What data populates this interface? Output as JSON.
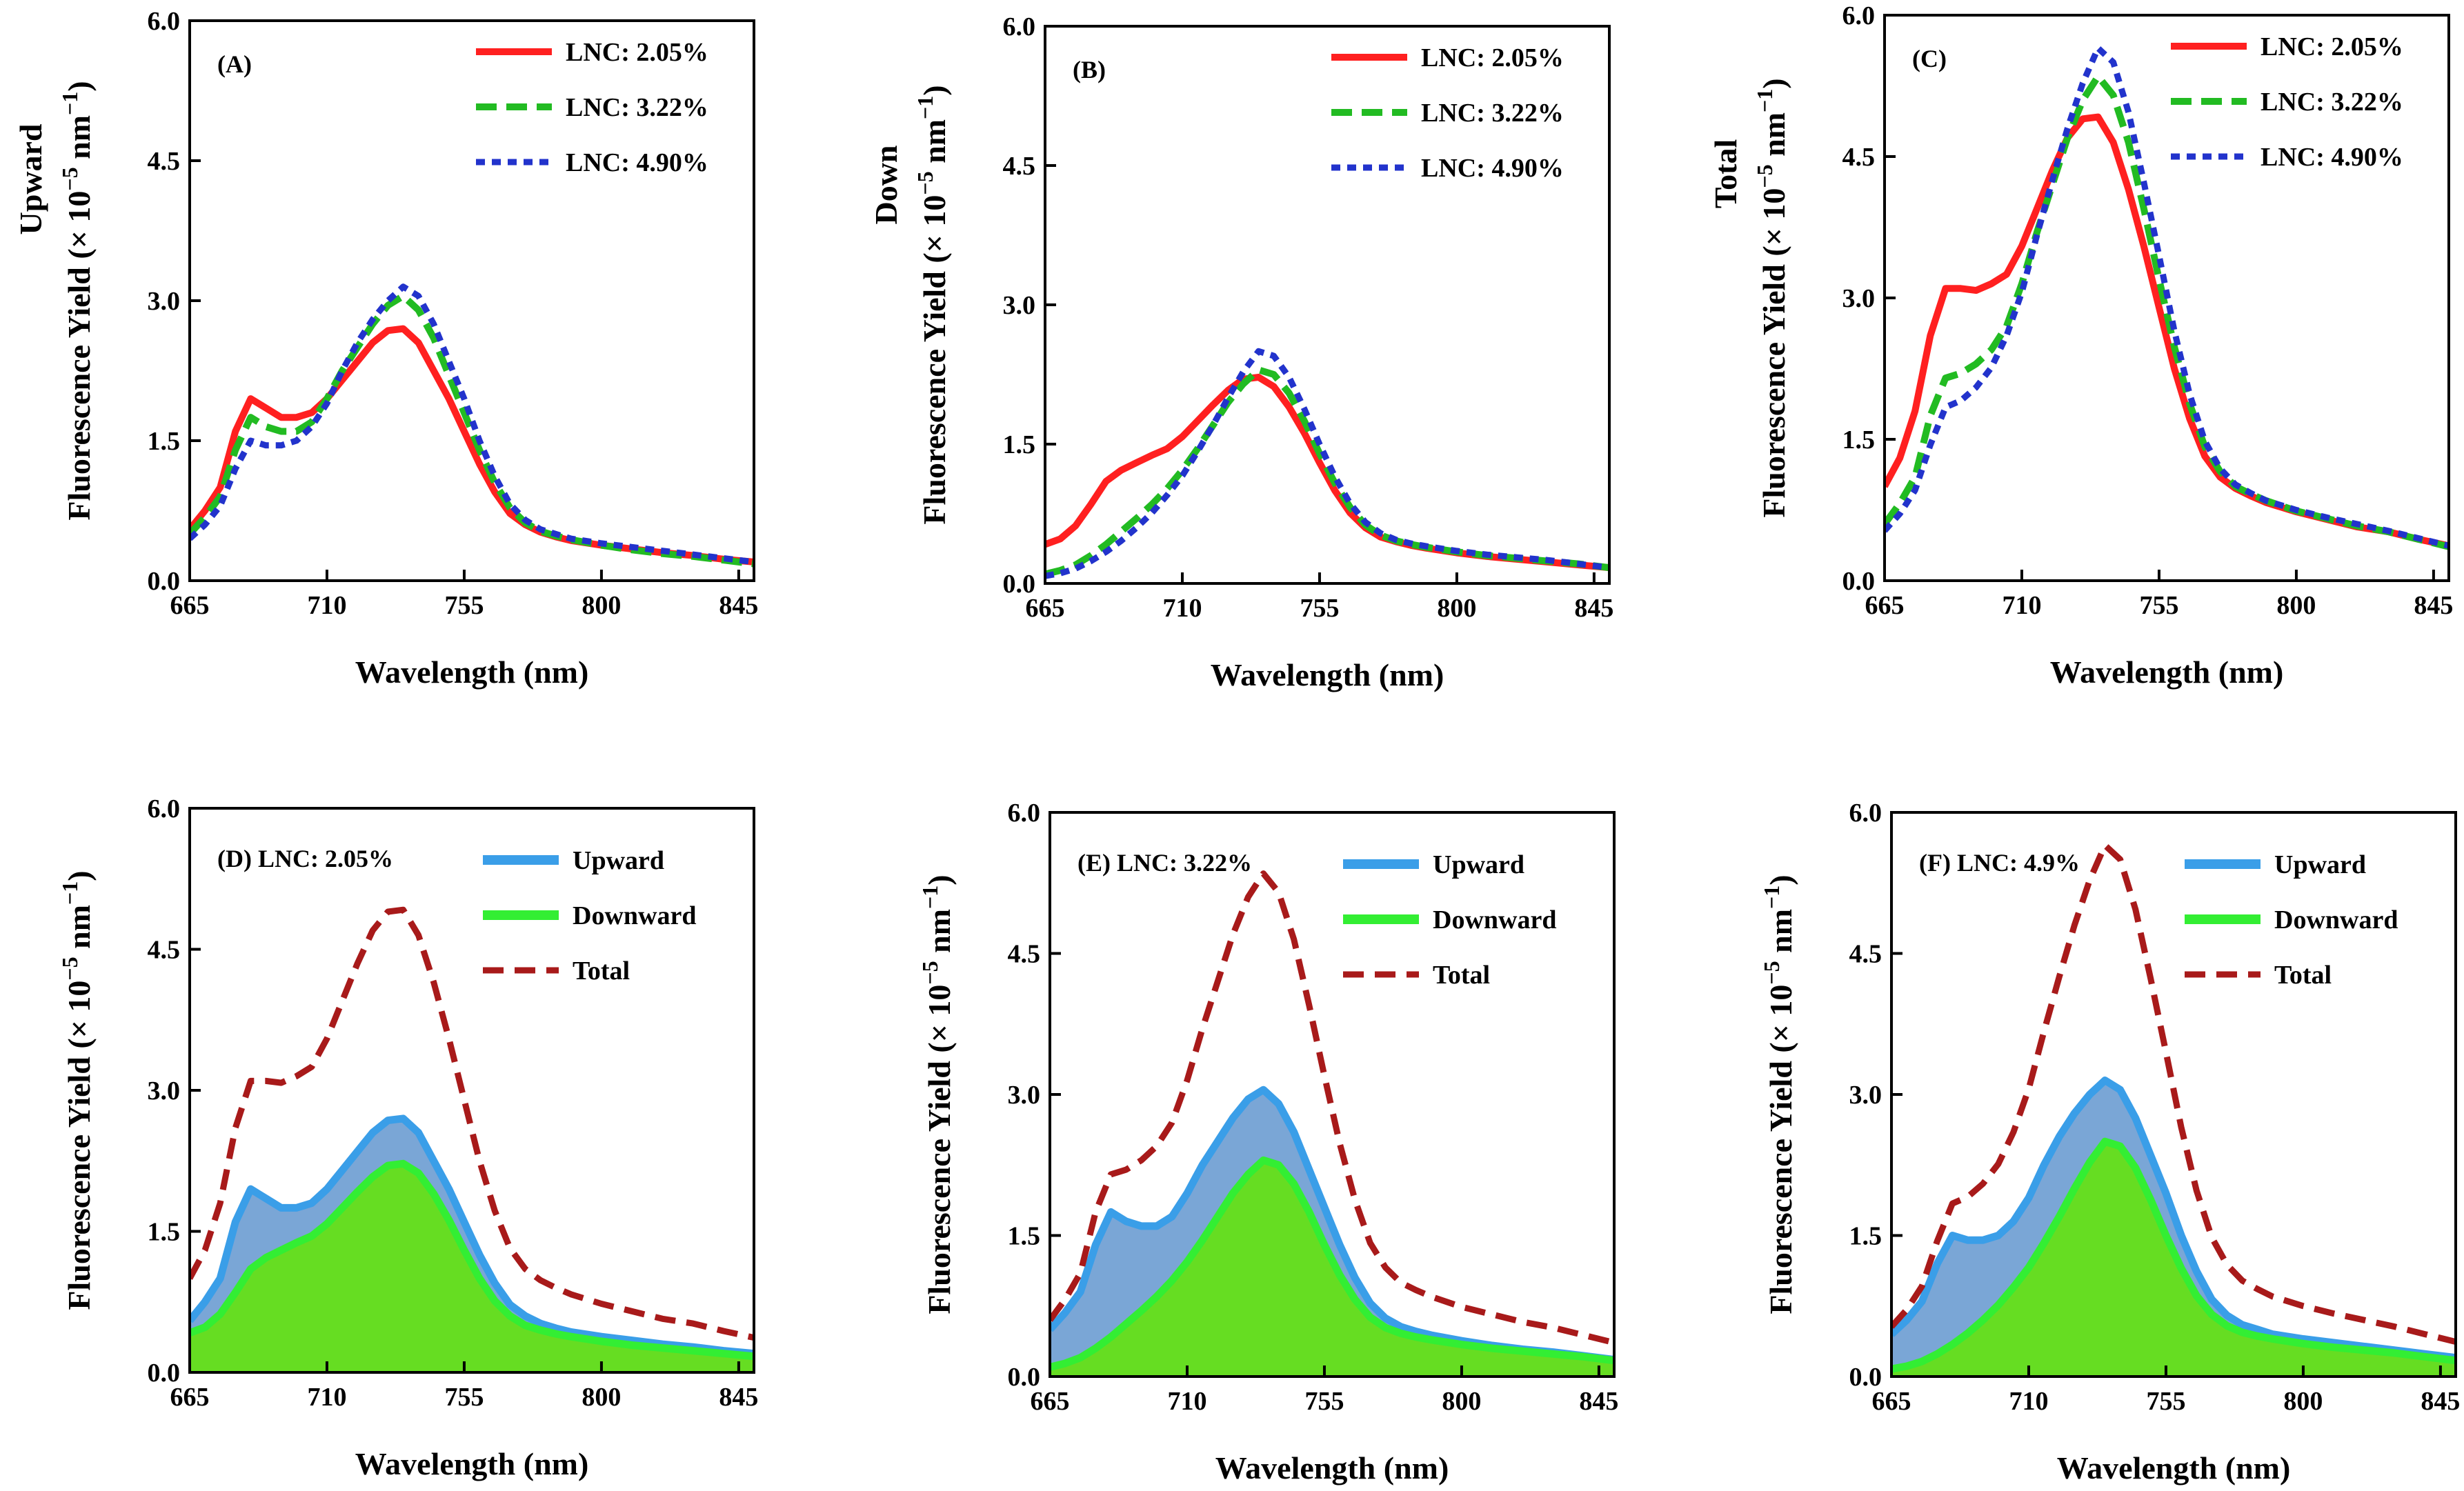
{
  "colors": {
    "lnc_205": "#ff2020",
    "lnc_322": "#22bb22",
    "lnc_490": "#2233cc",
    "upward_line": "#3a9ee8",
    "upward_fill": "#7aa6d6",
    "downward_line": "#33ee33",
    "downward_fill": "#66dd22",
    "total": "#a81a1a"
  },
  "chart_data": [
    {
      "id": "A",
      "type": "line",
      "panel_label": "(A)",
      "title": "",
      "xlabel": "Wavelength (nm)",
      "ylabel_main": "Fluorescence Yield (× 10",
      "ylabel_exp": "−5",
      "ylabel_unit": " nm",
      "ylabel_unit_exp": "−1",
      "ylabel_unit_close": ")",
      "ylabel_prefix": "Upward",
      "xlim": [
        665,
        850
      ],
      "ylim": [
        0,
        6
      ],
      "xticks": [
        "665",
        "710",
        "755",
        "800",
        "845"
      ],
      "yticks": [
        "0.0",
        "1.5",
        "3.0",
        "4.5",
        "6.0"
      ],
      "x": [
        665,
        670,
        675,
        680,
        685,
        690,
        695,
        700,
        705,
        710,
        715,
        720,
        725,
        730,
        735,
        740,
        745,
        750,
        755,
        760,
        765,
        770,
        775,
        780,
        785,
        790,
        800,
        810,
        820,
        830,
        840,
        850
      ],
      "series": [
        {
          "name": "LNC: 2.05%",
          "style": "solid",
          "color_key": "lnc_205",
          "values": [
            0.55,
            0.75,
            1.0,
            1.6,
            1.95,
            1.85,
            1.75,
            1.75,
            1.8,
            1.95,
            2.15,
            2.35,
            2.55,
            2.68,
            2.7,
            2.55,
            2.25,
            1.95,
            1.6,
            1.25,
            0.95,
            0.72,
            0.6,
            0.52,
            0.47,
            0.43,
            0.38,
            0.34,
            0.3,
            0.27,
            0.23,
            0.2
          ]
        },
        {
          "name": "LNC: 3.22%",
          "style": "dashed",
          "color_key": "lnc_322",
          "values": [
            0.5,
            0.68,
            0.9,
            1.4,
            1.75,
            1.65,
            1.6,
            1.6,
            1.7,
            1.95,
            2.25,
            2.5,
            2.75,
            2.95,
            3.05,
            2.9,
            2.6,
            2.2,
            1.8,
            1.4,
            1.05,
            0.78,
            0.62,
            0.53,
            0.48,
            0.44,
            0.38,
            0.33,
            0.29,
            0.26,
            0.22,
            0.18
          ]
        },
        {
          "name": "LNC: 4.90%",
          "style": "dotted",
          "color_key": "lnc_490",
          "values": [
            0.45,
            0.6,
            0.8,
            1.2,
            1.5,
            1.45,
            1.45,
            1.5,
            1.65,
            1.9,
            2.25,
            2.55,
            2.8,
            3.0,
            3.15,
            3.05,
            2.75,
            2.35,
            1.95,
            1.5,
            1.12,
            0.82,
            0.65,
            0.55,
            0.5,
            0.45,
            0.4,
            0.36,
            0.32,
            0.28,
            0.24,
            0.2
          ]
        }
      ],
      "legend": [
        "LNC: 2.05%",
        "LNC: 3.22%",
        "LNC: 4.90%"
      ]
    },
    {
      "id": "B",
      "type": "line",
      "panel_label": "(B)",
      "title": "",
      "xlabel": "Wavelength (nm)",
      "ylabel_main": "Fluorescence Yield (× 10",
      "ylabel_exp": "−5",
      "ylabel_unit": " nm",
      "ylabel_unit_exp": "−1",
      "ylabel_unit_close": ")",
      "ylabel_prefix": "Down",
      "xlim": [
        665,
        850
      ],
      "ylim": [
        0,
        6
      ],
      "xticks": [
        "665",
        "710",
        "755",
        "800",
        "845"
      ],
      "yticks": [
        "0.0",
        "1.5",
        "3.0",
        "4.5",
        "6.0"
      ],
      "x": [
        665,
        670,
        675,
        680,
        685,
        690,
        695,
        700,
        705,
        710,
        715,
        720,
        725,
        730,
        735,
        740,
        745,
        750,
        755,
        760,
        765,
        770,
        775,
        780,
        785,
        790,
        800,
        810,
        820,
        830,
        840,
        850
      ],
      "series": [
        {
          "name": "LNC: 2.05%",
          "style": "solid",
          "color_key": "lnc_205",
          "values": [
            0.42,
            0.48,
            0.62,
            0.85,
            1.1,
            1.22,
            1.3,
            1.38,
            1.45,
            1.58,
            1.75,
            1.92,
            2.08,
            2.2,
            2.22,
            2.12,
            1.9,
            1.62,
            1.3,
            1.0,
            0.76,
            0.6,
            0.5,
            0.45,
            0.41,
            0.38,
            0.33,
            0.29,
            0.26,
            0.23,
            0.2,
            0.17
          ]
        },
        {
          "name": "LNC: 3.22%",
          "style": "dashed",
          "color_key": "lnc_322",
          "values": [
            0.1,
            0.14,
            0.2,
            0.3,
            0.42,
            0.56,
            0.7,
            0.85,
            1.02,
            1.22,
            1.45,
            1.7,
            1.95,
            2.15,
            2.3,
            2.25,
            2.05,
            1.75,
            1.4,
            1.08,
            0.82,
            0.63,
            0.52,
            0.46,
            0.42,
            0.39,
            0.34,
            0.3,
            0.27,
            0.24,
            0.21,
            0.17
          ]
        },
        {
          "name": "LNC: 4.90%",
          "style": "dotted",
          "color_key": "lnc_490",
          "values": [
            0.08,
            0.11,
            0.16,
            0.24,
            0.34,
            0.46,
            0.6,
            0.76,
            0.95,
            1.16,
            1.42,
            1.7,
            2.0,
            2.28,
            2.5,
            2.45,
            2.22,
            1.88,
            1.5,
            1.15,
            0.86,
            0.66,
            0.54,
            0.47,
            0.43,
            0.4,
            0.35,
            0.31,
            0.28,
            0.25,
            0.21,
            0.17
          ]
        }
      ],
      "legend": [
        "LNC: 2.05%",
        "LNC: 3.22%",
        "LNC: 4.90%"
      ]
    },
    {
      "id": "C",
      "type": "line",
      "panel_label": "(C)",
      "title": "",
      "xlabel": "Wavelength (nm)",
      "ylabel_main": "Fluorescence Yield (× 10",
      "ylabel_exp": "−5",
      "ylabel_unit": " nm",
      "ylabel_unit_exp": "−1",
      "ylabel_unit_close": ")",
      "ylabel_prefix": "Total",
      "xlim": [
        665,
        850
      ],
      "ylim": [
        0,
        6
      ],
      "xticks": [
        "665",
        "710",
        "755",
        "800",
        "845"
      ],
      "yticks": [
        "0.0",
        "1.5",
        "3.0",
        "4.5",
        "6.0"
      ],
      "x": [
        665,
        670,
        675,
        680,
        685,
        690,
        695,
        700,
        705,
        710,
        715,
        720,
        725,
        730,
        735,
        740,
        745,
        750,
        755,
        760,
        765,
        770,
        775,
        780,
        785,
        790,
        800,
        810,
        820,
        830,
        840,
        850
      ],
      "series": [
        {
          "name": "LNC: 2.05%",
          "style": "solid",
          "color_key": "lnc_205",
          "values": [
            1.0,
            1.3,
            1.8,
            2.6,
            3.1,
            3.1,
            3.08,
            3.15,
            3.25,
            3.55,
            3.95,
            4.35,
            4.7,
            4.9,
            4.92,
            4.65,
            4.15,
            3.55,
            2.9,
            2.25,
            1.72,
            1.32,
            1.1,
            0.98,
            0.9,
            0.83,
            0.73,
            0.65,
            0.57,
            0.52,
            0.44,
            0.37
          ]
        },
        {
          "name": "LNC: 3.22%",
          "style": "dashed",
          "color_key": "lnc_322",
          "values": [
            0.6,
            0.82,
            1.1,
            1.75,
            2.15,
            2.2,
            2.3,
            2.45,
            2.7,
            3.15,
            3.7,
            4.2,
            4.7,
            5.1,
            5.35,
            5.15,
            4.65,
            3.95,
            3.2,
            2.48,
            1.88,
            1.42,
            1.16,
            1.0,
            0.92,
            0.85,
            0.74,
            0.66,
            0.58,
            0.52,
            0.44,
            0.36
          ]
        },
        {
          "name": "LNC: 4.90%",
          "style": "dotted",
          "color_key": "lnc_490",
          "values": [
            0.53,
            0.71,
            0.96,
            1.44,
            1.84,
            1.91,
            2.05,
            2.26,
            2.6,
            3.06,
            3.67,
            4.25,
            4.8,
            5.28,
            5.65,
            5.5,
            4.97,
            4.23,
            3.45,
            2.65,
            1.98,
            1.48,
            1.19,
            1.02,
            0.93,
            0.85,
            0.75,
            0.67,
            0.6,
            0.53,
            0.45,
            0.37
          ]
        }
      ],
      "legend": [
        "LNC: 2.05%",
        "LNC: 3.22%",
        "LNC: 4.90%"
      ]
    },
    {
      "id": "D",
      "type": "area",
      "panel_label": "(D) LNC: 2.05%",
      "title": "",
      "xlabel": "Wavelength (nm)",
      "ylabel_main": "Fluorescence Yield (× 10",
      "ylabel_exp": "−5",
      "ylabel_unit": " nm",
      "ylabel_unit_exp": "−1",
      "ylabel_unit_close": ")",
      "ylabel_prefix": "",
      "xlim": [
        665,
        850
      ],
      "ylim": [
        0,
        6
      ],
      "xticks": [
        "665",
        "710",
        "755",
        "800",
        "845"
      ],
      "yticks": [
        "0.0",
        "1.5",
        "3.0",
        "4.5",
        "6.0"
      ],
      "x": [
        665,
        670,
        675,
        680,
        685,
        690,
        695,
        700,
        705,
        710,
        715,
        720,
        725,
        730,
        735,
        740,
        745,
        750,
        755,
        760,
        765,
        770,
        775,
        780,
        785,
        790,
        800,
        810,
        820,
        830,
        840,
        850
      ],
      "series": [
        {
          "name": "Upward",
          "style": "area_upper",
          "values": [
            0.55,
            0.75,
            1.0,
            1.6,
            1.95,
            1.85,
            1.75,
            1.75,
            1.8,
            1.95,
            2.15,
            2.35,
            2.55,
            2.68,
            2.7,
            2.55,
            2.25,
            1.95,
            1.6,
            1.25,
            0.95,
            0.72,
            0.6,
            0.52,
            0.47,
            0.43,
            0.38,
            0.34,
            0.3,
            0.27,
            0.23,
            0.2
          ]
        },
        {
          "name": "Downward",
          "style": "area_lower",
          "values": [
            0.42,
            0.48,
            0.62,
            0.85,
            1.1,
            1.22,
            1.3,
            1.38,
            1.45,
            1.58,
            1.75,
            1.92,
            2.08,
            2.2,
            2.22,
            2.12,
            1.9,
            1.62,
            1.3,
            1.0,
            0.76,
            0.6,
            0.5,
            0.45,
            0.41,
            0.38,
            0.33,
            0.29,
            0.26,
            0.23,
            0.2,
            0.17
          ]
        },
        {
          "name": "Total",
          "style": "total_dashed",
          "values": [
            1.0,
            1.3,
            1.8,
            2.6,
            3.1,
            3.1,
            3.08,
            3.15,
            3.25,
            3.55,
            3.95,
            4.35,
            4.7,
            4.9,
            4.92,
            4.65,
            4.15,
            3.55,
            2.9,
            2.25,
            1.72,
            1.32,
            1.1,
            0.98,
            0.9,
            0.83,
            0.73,
            0.65,
            0.57,
            0.52,
            0.44,
            0.37
          ]
        }
      ],
      "legend": [
        "Upward",
        "Downward",
        "Total"
      ]
    },
    {
      "id": "E",
      "type": "area",
      "panel_label": "(E) LNC: 3.22%",
      "title": "",
      "xlabel": "Wavelength (nm)",
      "ylabel_main": "Fluorescence Yield (× 10",
      "ylabel_exp": "−5",
      "ylabel_unit": " nm",
      "ylabel_unit_exp": "−1",
      "ylabel_unit_close": ")",
      "ylabel_prefix": "",
      "xlim": [
        665,
        850
      ],
      "ylim": [
        0,
        6
      ],
      "xticks": [
        "665",
        "710",
        "755",
        "800",
        "845"
      ],
      "yticks": [
        "0.0",
        "1.5",
        "3.0",
        "4.5",
        "6.0"
      ],
      "x": [
        665,
        670,
        675,
        680,
        685,
        690,
        695,
        700,
        705,
        710,
        715,
        720,
        725,
        730,
        735,
        740,
        745,
        750,
        755,
        760,
        765,
        770,
        775,
        780,
        785,
        790,
        800,
        810,
        820,
        830,
        840,
        850
      ],
      "series": [
        {
          "name": "Upward",
          "style": "area_upper",
          "values": [
            0.5,
            0.68,
            0.9,
            1.4,
            1.75,
            1.65,
            1.6,
            1.6,
            1.7,
            1.95,
            2.25,
            2.5,
            2.75,
            2.95,
            3.05,
            2.9,
            2.6,
            2.2,
            1.8,
            1.4,
            1.05,
            0.78,
            0.62,
            0.53,
            0.48,
            0.44,
            0.38,
            0.33,
            0.29,
            0.26,
            0.22,
            0.18
          ]
        },
        {
          "name": "Downward",
          "style": "area_lower",
          "values": [
            0.1,
            0.14,
            0.2,
            0.3,
            0.42,
            0.56,
            0.7,
            0.85,
            1.02,
            1.22,
            1.45,
            1.7,
            1.95,
            2.15,
            2.3,
            2.25,
            2.05,
            1.75,
            1.4,
            1.08,
            0.82,
            0.63,
            0.52,
            0.46,
            0.42,
            0.39,
            0.34,
            0.3,
            0.27,
            0.24,
            0.21,
            0.17
          ]
        },
        {
          "name": "Total",
          "style": "total_dashed",
          "values": [
            0.6,
            0.82,
            1.1,
            1.75,
            2.15,
            2.2,
            2.3,
            2.45,
            2.7,
            3.15,
            3.7,
            4.2,
            4.7,
            5.1,
            5.35,
            5.15,
            4.65,
            3.95,
            3.2,
            2.48,
            1.88,
            1.42,
            1.16,
            1.0,
            0.92,
            0.85,
            0.74,
            0.66,
            0.58,
            0.52,
            0.44,
            0.36
          ]
        }
      ],
      "legend": [
        "Upward",
        "Downward",
        "Total"
      ]
    },
    {
      "id": "F",
      "type": "area",
      "panel_label": "(F) LNC: 4.9%",
      "title": "",
      "xlabel": "Wavelength (nm)",
      "ylabel_main": "Fluorescence Yield (× 10",
      "ylabel_exp": "−5",
      "ylabel_unit": " nm",
      "ylabel_unit_exp": "−1",
      "ylabel_unit_close": ")",
      "ylabel_prefix": "",
      "xlim": [
        665,
        850
      ],
      "ylim": [
        0,
        6
      ],
      "xticks": [
        "665",
        "710",
        "755",
        "800",
        "845"
      ],
      "yticks": [
        "0.0",
        "1.5",
        "3.0",
        "4.5",
        "6.0"
      ],
      "x": [
        665,
        670,
        675,
        680,
        685,
        690,
        695,
        700,
        705,
        710,
        715,
        720,
        725,
        730,
        735,
        740,
        745,
        750,
        755,
        760,
        765,
        770,
        775,
        780,
        785,
        790,
        800,
        810,
        820,
        830,
        840,
        850
      ],
      "series": [
        {
          "name": "Upward",
          "style": "area_upper",
          "values": [
            0.45,
            0.6,
            0.8,
            1.2,
            1.5,
            1.45,
            1.45,
            1.5,
            1.65,
            1.9,
            2.25,
            2.55,
            2.8,
            3.0,
            3.15,
            3.05,
            2.75,
            2.35,
            1.95,
            1.5,
            1.12,
            0.82,
            0.65,
            0.55,
            0.5,
            0.45,
            0.4,
            0.36,
            0.32,
            0.28,
            0.24,
            0.2
          ]
        },
        {
          "name": "Downward",
          "style": "area_lower",
          "values": [
            0.08,
            0.11,
            0.16,
            0.24,
            0.34,
            0.46,
            0.6,
            0.76,
            0.95,
            1.16,
            1.42,
            1.7,
            2.0,
            2.28,
            2.5,
            2.45,
            2.22,
            1.88,
            1.5,
            1.15,
            0.86,
            0.66,
            0.54,
            0.47,
            0.43,
            0.4,
            0.35,
            0.31,
            0.28,
            0.25,
            0.21,
            0.17
          ]
        },
        {
          "name": "Total",
          "style": "total_dashed",
          "values": [
            0.53,
            0.71,
            0.96,
            1.44,
            1.84,
            1.91,
            2.05,
            2.26,
            2.6,
            3.06,
            3.67,
            4.25,
            4.8,
            5.28,
            5.65,
            5.5,
            4.97,
            4.23,
            3.45,
            2.65,
            1.98,
            1.48,
            1.19,
            1.02,
            0.93,
            0.85,
            0.75,
            0.67,
            0.6,
            0.53,
            0.45,
            0.37
          ]
        }
      ],
      "legend": [
        "Upward",
        "Downward",
        "Total"
      ]
    }
  ]
}
